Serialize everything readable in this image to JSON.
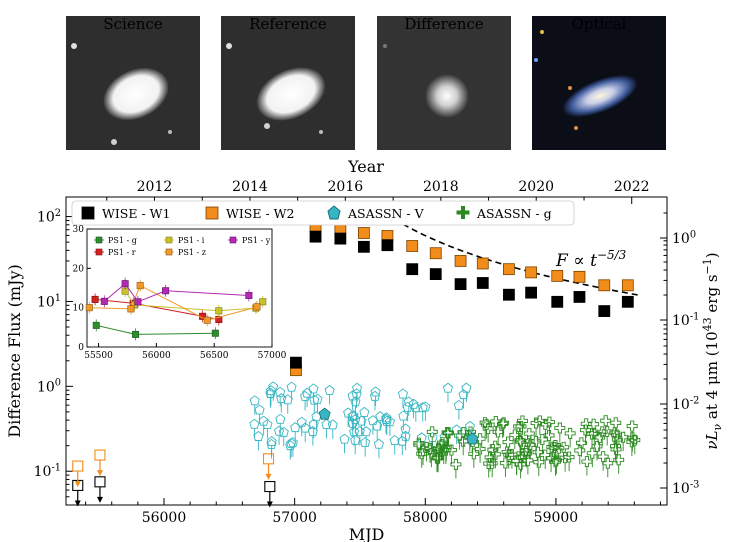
{
  "panels": [
    {
      "title": "Science"
    },
    {
      "title": "Reference"
    },
    {
      "title": "Difference"
    },
    {
      "title": "Optical"
    }
  ],
  "colors": {
    "wise_w1": "#000000",
    "wise_w2": "#f28c1a",
    "asassn_v": "#35b6c2",
    "asassn_g": "#2a8a1f",
    "ps1_g": "#2e8b2e",
    "ps1_r": "#d42020",
    "ps1_i": "#c9c229",
    "ps1_z": "#f09a2a",
    "ps1_y": "#b22ab2"
  },
  "chart_data": [
    {
      "type": "scatter",
      "xlabel": "MJD",
      "ylabel": "Difference Flux (mJy)",
      "ylabel_right": "νL_ν at 4 μm (10^43 erg s^-1)",
      "top_axis_label": "Year",
      "yscale": "log",
      "xlim": [
        55250,
        59850
      ],
      "ylim": [
        0.04,
        170
      ],
      "x_ticks": [
        "56000",
        "57000",
        "58000",
        "59000"
      ],
      "top_ticks": [
        "2012",
        "2014",
        "2016",
        "2018",
        "2020",
        "2022"
      ],
      "y_ticks": [
        "10^-1",
        "10^0",
        "10^1",
        "10^2"
      ],
      "right_ticks": [
        "10^0",
        "10^-1",
        "10^-2",
        "10^-3"
      ],
      "legend": [
        "WISE - W1",
        "WISE - W2",
        "ASASSN - V",
        "ASASSN - g"
      ],
      "annotation": "F ∝ t^-5/3",
      "series": [
        {
          "name": "WISE - W1",
          "marker": "square",
          "x": [
            57010,
            57160,
            57350,
            57530,
            57710,
            57900,
            58080,
            58270,
            58440,
            58640,
            58810,
            59010,
            59180,
            59370,
            59550
          ],
          "y": [
            1.9,
            58,
            55,
            44,
            46,
            24,
            21,
            16,
            16.5,
            12,
            12.7,
            9.9,
            11.3,
            7.7,
            9.9
          ]
        },
        {
          "name": "WISE - W2",
          "marker": "square",
          "x": [
            57010,
            57160,
            57350,
            57530,
            57710,
            57900,
            58080,
            58270,
            58440,
            58640,
            58810,
            59010,
            59180,
            59370,
            59550
          ],
          "y": [
            1.55,
            75,
            74,
            64,
            59,
            45,
            37,
            30,
            28,
            24,
            22,
            20,
            19.5,
            15.5,
            15.5
          ]
        },
        {
          "name": "WISE - W1 upper limits",
          "marker": "open-square-arrow",
          "x": [
            55340,
            55510,
            56810
          ],
          "y": [
            0.068,
            0.075,
            0.066
          ]
        },
        {
          "name": "WISE - W2 upper limits",
          "marker": "open-square-arrow",
          "x": [
            55340,
            55510,
            56800
          ],
          "y": [
            0.115,
            0.155,
            0.14
          ]
        },
        {
          "name": "ASASSN - V",
          "marker": "pentagon",
          "x": [
            57230,
            58360
          ],
          "y": [
            0.47,
            0.24
          ]
        },
        {
          "name": "ASASSN - g",
          "marker": "plus",
          "x": [],
          "y": []
        }
      ],
      "reference_curve": {
        "label": "F ∝ t^-5/3",
        "x": [
          57700,
          59650
        ],
        "y": [
          108,
          23
        ]
      }
    },
    {
      "type": "line",
      "inset": true,
      "xlim": [
        55400,
        57000
      ],
      "ylim": [
        0,
        30
      ],
      "x_ticks": [
        "55500",
        "56000",
        "56500",
        "57000"
      ],
      "y_ticks": [
        "0",
        "10",
        "20",
        "30"
      ],
      "legend": [
        "PS1 - g",
        "PS1 - r",
        "PS1 - i",
        "PS1 - z",
        "PS1 - y"
      ],
      "series": [
        {
          "name": "PS1 - g",
          "x": [
            55480,
            55820,
            56510
          ],
          "y": [
            5.5,
            3.2,
            3.5
          ]
        },
        {
          "name": "PS1 - r",
          "x": [
            55470,
            55800,
            56400,
            56540
          ],
          "y": [
            12.1,
            11.1,
            7.8,
            7.0
          ]
        },
        {
          "name": "PS1 - i",
          "x": [
            55730,
            55810,
            56540,
            56860,
            56920
          ],
          "y": [
            14.2,
            10.7,
            9.2,
            9.9,
            11.5
          ]
        },
        {
          "name": "PS1 - z",
          "x": [
            55420,
            55780,
            55860,
            56440,
            56870
          ],
          "y": [
            10.0,
            9.7,
            15.6,
            6.8,
            10.2
          ]
        },
        {
          "name": "PS1 - y",
          "x": [
            55550,
            55730,
            55840,
            56080,
            56800
          ],
          "y": [
            11.6,
            16.1,
            11.5,
            14.3,
            13.1
          ]
        }
      ]
    }
  ]
}
